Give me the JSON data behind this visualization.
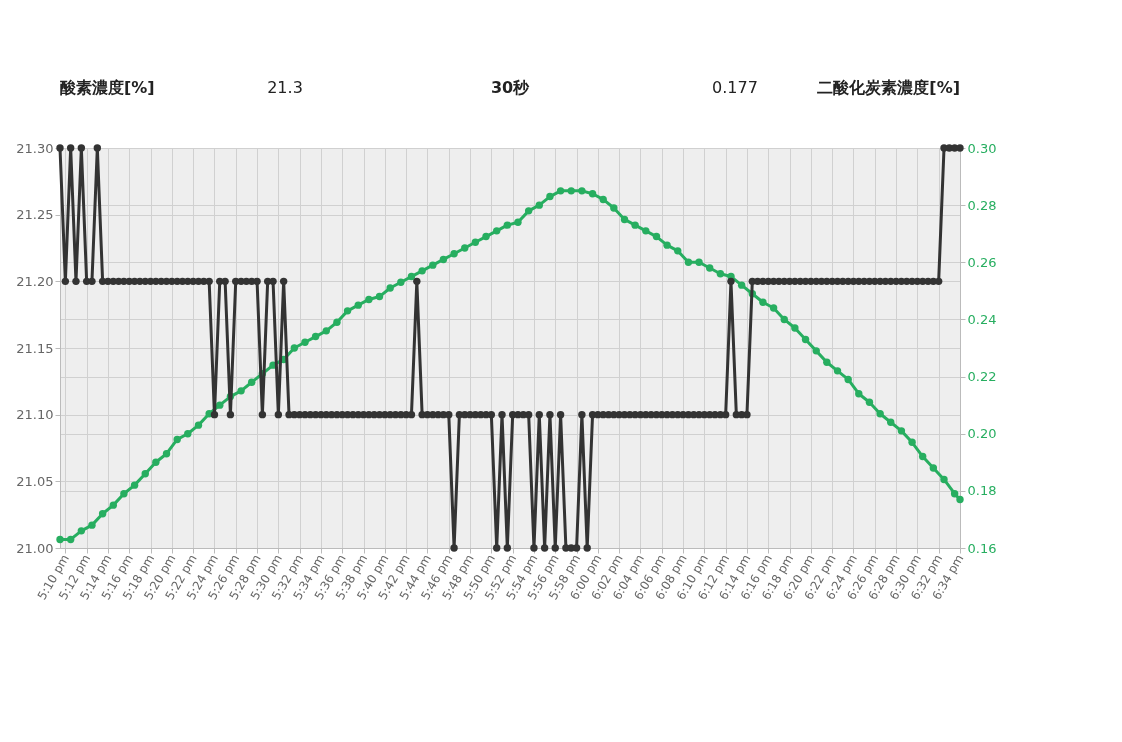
{
  "chart_data": {
    "type": "line",
    "marker": "circle",
    "line_style": "solid",
    "grid": true,
    "annotations": [
      "酸素濃度[%]",
      "21.3",
      "30秒",
      "0.177",
      "二酸化炭素濃度[%]"
    ],
    "x": [
      17.1583,
      17.1667,
      17.175,
      17.1833,
      17.1917,
      17.2,
      17.2083,
      17.2167,
      17.225,
      17.2333,
      17.2417,
      17.25,
      17.2583,
      17.2667,
      17.275,
      17.2833,
      17.2917,
      17.3,
      17.3083,
      17.3167,
      17.325,
      17.3333,
      17.3417,
      17.35,
      17.3583,
      17.3667,
      17.375,
      17.3833,
      17.3917,
      17.4,
      17.4083,
      17.4167,
      17.425,
      17.4333,
      17.4417,
      17.45,
      17.4583,
      17.4667,
      17.475,
      17.4833,
      17.4917,
      17.5,
      17.5083,
      17.5167,
      17.525,
      17.5333,
      17.5417,
      17.55,
      17.5583,
      17.5667,
      17.575,
      17.5833,
      17.5917,
      17.6,
      17.6083,
      17.6167,
      17.625,
      17.6333,
      17.6417,
      17.65,
      17.6583,
      17.6667,
      17.675,
      17.6833,
      17.6917,
      17.7,
      17.7083,
      17.7167,
      17.725,
      17.7333,
      17.7417,
      17.75,
      17.7583,
      17.7667,
      17.775,
      17.7833,
      17.7917,
      17.8,
      17.8083,
      17.8167,
      17.825,
      17.8333,
      17.8417,
      17.85,
      17.8583,
      17.8667,
      17.875,
      17.8833,
      17.8917,
      17.9,
      17.9083,
      17.9167,
      17.925,
      17.9333,
      17.9417,
      17.95,
      17.9583,
      17.9667,
      17.975,
      17.9833,
      17.9917,
      18.0,
      18.0083,
      18.0167,
      18.025,
      18.0333,
      18.0417,
      18.05,
      18.0583,
      18.0667,
      18.075,
      18.0833,
      18.0917,
      18.1,
      18.1083,
      18.1167,
      18.125,
      18.1333,
      18.1417,
      18.15,
      18.1583,
      18.1667,
      18.175,
      18.1833,
      18.1917,
      18.2,
      18.2083,
      18.2167,
      18.225,
      18.2333,
      18.2417,
      18.25,
      18.2583,
      18.2667,
      18.275,
      18.2833,
      18.2917,
      18.3,
      18.3083,
      18.3167,
      18.325,
      18.3333,
      18.3417,
      18.35,
      18.3583,
      18.3667,
      18.375,
      18.3833,
      18.3917,
      18.4,
      18.4083,
      18.4167,
      18.425,
      18.4333,
      18.4417,
      18.45,
      18.4583,
      18.4667,
      18.475,
      18.4833,
      18.4917,
      18.5,
      18.5083,
      18.5167,
      18.525,
      18.5333,
      18.5417,
      18.55,
      18.5583,
      18.5667
    ],
    "series": [
      {
        "color": "#333333",
        "values": [
          21.3,
          21.2,
          21.3,
          21.2,
          21.3,
          21.2,
          21.2,
          21.3,
          21.2,
          21.2,
          21.2,
          21.2,
          21.2,
          21.2,
          21.2,
          21.2,
          21.2,
          21.2,
          21.2,
          21.2,
          21.2,
          21.2,
          21.2,
          21.2,
          21.2,
          21.2,
          21.2,
          21.2,
          21.2,
          21.1,
          21.2,
          21.2,
          21.1,
          21.2,
          21.2,
          21.2,
          21.2,
          21.2,
          21.1,
          21.2,
          21.2,
          21.1,
          21.2,
          21.1,
          21.1,
          21.1,
          21.1,
          21.1,
          21.1,
          21.1,
          21.1,
          21.1,
          21.1,
          21.1,
          21.1,
          21.1,
          21.1,
          21.1,
          21.1,
          21.1,
          21.1,
          21.1,
          21.1,
          21.1,
          21.1,
          21.1,
          21.1,
          21.2,
          21.1,
          21.1,
          21.1,
          21.1,
          21.1,
          21.1,
          21.0,
          21.1,
          21.1,
          21.1,
          21.1,
          21.1,
          21.1,
          21.1,
          21.0,
          21.1,
          21.0,
          21.1,
          21.1,
          21.1,
          21.1,
          21.0,
          21.1,
          21.0,
          21.1,
          21.0,
          21.1,
          21.0,
          21.0,
          21.0,
          21.1,
          21.0,
          21.1,
          21.1,
          21.1,
          21.1,
          21.1,
          21.1,
          21.1,
          21.1,
          21.1,
          21.1,
          21.1,
          21.1,
          21.1,
          21.1,
          21.1,
          21.1,
          21.1,
          21.1,
          21.1,
          21.1,
          21.1,
          21.1,
          21.1,
          21.1,
          21.1,
          21.1,
          21.2,
          21.1,
          21.1,
          21.1,
          21.2,
          21.2,
          21.2,
          21.2,
          21.2,
          21.2,
          21.2,
          21.2,
          21.2,
          21.2,
          21.2,
          21.2,
          21.2,
          21.2,
          21.2,
          21.2,
          21.2,
          21.2,
          21.2,
          21.2,
          21.2,
          21.2,
          21.2,
          21.2,
          21.2,
          21.2,
          21.2,
          21.2,
          21.2,
          21.2,
          21.2,
          21.2,
          21.2,
          21.2,
          21.2,
          21.2,
          21.3,
          21.3,
          21.3,
          21.3
        ]
      },
      {
        "color": "#27ae60",
        "axis": "y2",
        "x": [
          17.1583,
          17.175,
          17.1917,
          17.2083,
          17.225,
          17.2417,
          17.2583,
          17.275,
          17.2917,
          17.3083,
          17.325,
          17.3417,
          17.3583,
          17.375,
          17.3917,
          17.4083,
          17.425,
          17.4417,
          17.4583,
          17.475,
          17.4917,
          17.5083,
          17.525,
          17.5417,
          17.5583,
          17.575,
          17.5917,
          17.6083,
          17.625,
          17.6417,
          17.6583,
          17.675,
          17.6917,
          17.7083,
          17.725,
          17.7417,
          17.7583,
          17.775,
          17.7917,
          17.8083,
          17.825,
          17.8417,
          17.8583,
          17.875,
          17.8917,
          17.9083,
          17.925,
          17.9417,
          17.9583,
          17.975,
          17.9917,
          18.0083,
          18.025,
          18.0417,
          18.0583,
          18.075,
          18.0917,
          18.1083,
          18.125,
          18.1417,
          18.1583,
          18.175,
          18.1917,
          18.2083,
          18.225,
          18.2417,
          18.2583,
          18.275,
          18.2917,
          18.3083,
          18.325,
          18.3417,
          18.3583,
          18.375,
          18.3917,
          18.4083,
          18.425,
          18.4417,
          18.4583,
          18.475,
          18.4917,
          18.5083,
          18.525,
          18.5417,
          18.5583,
          18.5667
        ],
        "values": [
          0.163,
          0.163,
          0.166,
          0.168,
          0.172,
          0.175,
          0.179,
          0.182,
          0.186,
          0.19,
          0.193,
          0.198,
          0.2,
          0.203,
          0.207,
          0.21,
          0.213,
          0.215,
          0.218,
          0.221,
          0.224,
          0.226,
          0.23,
          0.232,
          0.234,
          0.236,
          0.239,
          0.243,
          0.245,
          0.247,
          0.248,
          0.251,
          0.253,
          0.255,
          0.257,
          0.259,
          0.261,
          0.263,
          0.265,
          0.267,
          0.269,
          0.271,
          0.273,
          0.274,
          0.278,
          0.28,
          0.283,
          0.285,
          0.285,
          0.285,
          0.284,
          0.282,
          0.279,
          0.275,
          0.273,
          0.271,
          0.269,
          0.266,
          0.264,
          0.26,
          0.26,
          0.258,
          0.256,
          0.255,
          0.252,
          0.249,
          0.246,
          0.244,
          0.24,
          0.237,
          0.233,
          0.229,
          0.225,
          0.222,
          0.219,
          0.214,
          0.211,
          0.207,
          0.204,
          0.201,
          0.197,
          0.192,
          0.188,
          0.184,
          0.179,
          0.177
        ]
      }
    ],
    "xlim": [
      17.1583,
      18.5667
    ],
    "xticks": [
      {
        "value": 17.1667,
        "label": "5:10 pm"
      },
      {
        "value": 17.2,
        "label": "5:12 pm"
      },
      {
        "value": 17.2333,
        "label": "5:14 pm"
      },
      {
        "value": 17.2667,
        "label": "5:16 pm"
      },
      {
        "value": 17.3,
        "label": "5:18 pm"
      },
      {
        "value": 17.3333,
        "label": "5:20 pm"
      },
      {
        "value": 17.3667,
        "label": "5:22 pm"
      },
      {
        "value": 17.4,
        "label": "5:24 pm"
      },
      {
        "value": 17.4333,
        "label": "5:26 pm"
      },
      {
        "value": 17.4667,
        "label": "5:28 pm"
      },
      {
        "value": 17.5,
        "label": "5:30 pm"
      },
      {
        "value": 17.5333,
        "label": "5:32 pm"
      },
      {
        "value": 17.5667,
        "label": "5:34 pm"
      },
      {
        "value": 17.6,
        "label": "5:36 pm"
      },
      {
        "value": 17.6333,
        "label": "5:38 pm"
      },
      {
        "value": 17.6667,
        "label": "5:40 pm"
      },
      {
        "value": 17.7,
        "label": "5:42 pm"
      },
      {
        "value": 17.7333,
        "label": "5:44 pm"
      },
      {
        "value": 17.7667,
        "label": "5:46 pm"
      },
      {
        "value": 17.8,
        "label": "5:48 pm"
      },
      {
        "value": 17.8333,
        "label": "5:50 pm"
      },
      {
        "value": 17.8667,
        "label": "5:52 pm"
      },
      {
        "value": 17.9,
        "label": "5:54 pm"
      },
      {
        "value": 17.9333,
        "label": "5:56 pm"
      },
      {
        "value": 17.9667,
        "label": "5:58 pm"
      },
      {
        "value": 18.0,
        "label": "6:00 pm"
      },
      {
        "value": 18.0333,
        "label": "6:02 pm"
      },
      {
        "value": 18.0667,
        "label": "6:04 pm"
      },
      {
        "value": 18.1,
        "label": "6:06 pm"
      },
      {
        "value": 18.1333,
        "label": "6:08 pm"
      },
      {
        "value": 18.1667,
        "label": "6:10 pm"
      },
      {
        "value": 18.2,
        "label": "6:12 pm"
      },
      {
        "value": 18.2333,
        "label": "6:14 pm"
      },
      {
        "value": 18.2667,
        "label": "6:16 pm"
      },
      {
        "value": 18.3,
        "label": "6:18 pm"
      },
      {
        "value": 18.3333,
        "label": "6:20 pm"
      },
      {
        "value": 18.3667,
        "label": "6:22 pm"
      },
      {
        "value": 18.4,
        "label": "6:24 pm"
      },
      {
        "value": 18.4333,
        "label": "6:26 pm"
      },
      {
        "value": 18.4667,
        "label": "6:28 pm"
      },
      {
        "value": 18.5,
        "label": "6:30 pm"
      },
      {
        "value": 18.5333,
        "label": "6:32 pm"
      },
      {
        "value": 18.5667,
        "label": "6:34 pm"
      }
    ],
    "ylim": [
      21.0,
      21.3
    ],
    "yticks": [
      {
        "value": 21.0,
        "label": "21.00"
      },
      {
        "value": 21.05,
        "label": "21.05"
      },
      {
        "value": 21.1,
        "label": "21.10"
      },
      {
        "value": 21.15,
        "label": "21.15"
      },
      {
        "value": 21.2,
        "label": "21.20"
      },
      {
        "value": 21.25,
        "label": "21.25"
      },
      {
        "value": 21.3,
        "label": "21.30"
      }
    ],
    "y2lim": [
      0.16,
      0.3
    ],
    "y2ticks": [
      0.16,
      0.18,
      {
        "value": 0.2,
        "label": "0.20"
      },
      0.22,
      0.24,
      0.26,
      0.28,
      {
        "value": 0.3,
        "label": "0.30"
      }
    ]
  }
}
